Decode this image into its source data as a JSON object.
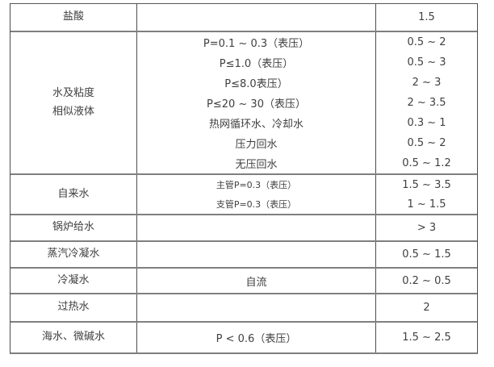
{
  "table": {
    "description": "liquid flow velocity table (continuation, no header visible)",
    "columns": [
      "liquid-type",
      "condition",
      "value"
    ],
    "colors": {
      "text": "#404040",
      "horizontal_border": "#7f7f7f",
      "vertical_border": "#4d4d4d",
      "background": "#ffffff"
    },
    "rows": [
      {
        "liquid": "盐酸",
        "conds": [
          ""
        ],
        "vals": [
          "1.5"
        ]
      },
      {
        "liquid": "水及粘度\n相似液体",
        "conds": [
          "P=0.1 ~ 0.3（表压）",
          "P≤1.0（表压）",
          "P≤8.0表压）",
          "P≤20 ~ 30（表压）",
          "热网循环水、冷却水",
          "压力回水",
          "无压回水"
        ],
        "vals": [
          "0.5 ~ 2",
          "0.5 ~ 3",
          "2 ~ 3",
          "2 ~ 3.5",
          "0.3 ~ 1",
          "0.5 ~ 2",
          "0.5 ~ 1.2"
        ]
      },
      {
        "liquid": "自来水",
        "conds": [
          "主管P=0.3（表压）",
          "支管P=0.3（表压）"
        ],
        "vals": [
          "1.5 ~ 3.5",
          "1 ~ 1.5"
        ]
      },
      {
        "liquid": "锅炉给水",
        "conds": [
          ""
        ],
        "vals": [
          "> 3"
        ]
      },
      {
        "liquid": "蒸汽冷凝水",
        "conds": [
          ""
        ],
        "vals": [
          "0.5 ~ 1.5"
        ]
      },
      {
        "liquid": "冷凝水",
        "conds": [
          "自流"
        ],
        "vals": [
          "0.2 ~ 0.5"
        ]
      },
      {
        "liquid": "过热水",
        "conds": [
          ""
        ],
        "vals": [
          "2"
        ]
      },
      {
        "liquid": "海水、微碱水",
        "conds": [
          "P < 0.6（表压）"
        ],
        "vals": [
          "1.5 ~ 2.5"
        ]
      }
    ]
  }
}
